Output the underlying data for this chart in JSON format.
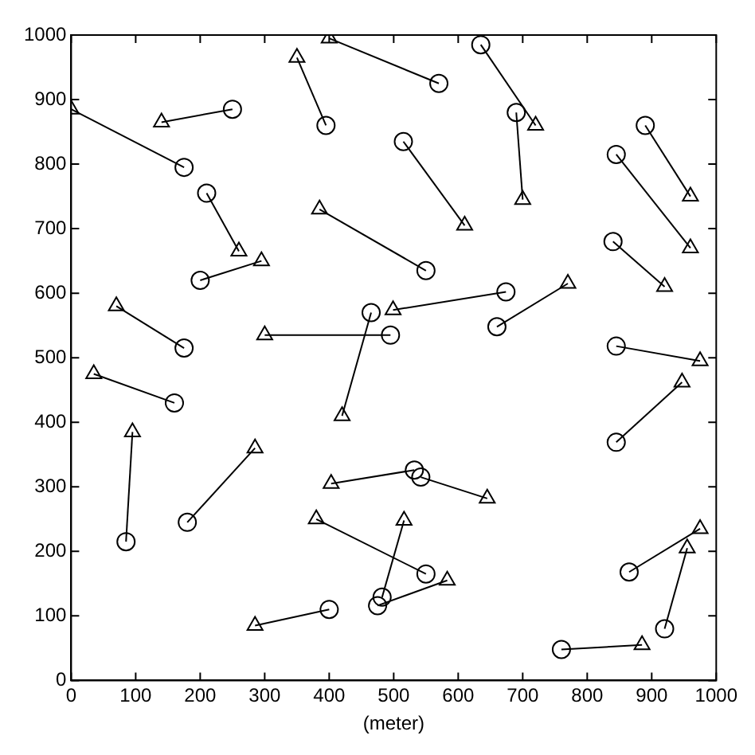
{
  "chart_data": {
    "type": "scatter",
    "xlabel": "(meter)",
    "xlim": [
      0,
      1000
    ],
    "ylim": [
      0,
      1000
    ],
    "xticks": [
      0,
      100,
      200,
      300,
      400,
      500,
      600,
      700,
      800,
      900,
      1000
    ],
    "yticks": [
      0,
      100,
      200,
      300,
      400,
      500,
      600,
      700,
      800,
      900,
      1000
    ],
    "grid": false,
    "legend": false,
    "series": [
      {
        "type": "line",
        "marker": "none",
        "color": "#000000",
        "x": [
          175,
          0
        ],
        "values": [
          795,
          885
        ]
      },
      {
        "type": "line",
        "marker": "none",
        "color": "#000000",
        "x": [
          250,
          140
        ],
        "values": [
          885,
          865
        ]
      },
      {
        "type": "line",
        "marker": "none",
        "color": "#000000",
        "x": [
          395,
          350
        ],
        "values": [
          860,
          965
        ]
      },
      {
        "type": "line",
        "marker": "none",
        "color": "#000000",
        "x": [
          570,
          400
        ],
        "values": [
          925,
          995
        ]
      },
      {
        "type": "line",
        "marker": "none",
        "color": "#000000",
        "x": [
          635,
          720
        ],
        "values": [
          985,
          860
        ]
      },
      {
        "type": "line",
        "marker": "none",
        "color": "#000000",
        "x": [
          690,
          700
        ],
        "values": [
          880,
          745
        ]
      },
      {
        "type": "line",
        "marker": "none",
        "color": "#000000",
        "x": [
          515,
          610
        ],
        "values": [
          835,
          705
        ]
      },
      {
        "type": "line",
        "marker": "none",
        "color": "#000000",
        "x": [
          550,
          385
        ],
        "values": [
          635,
          730
        ]
      },
      {
        "type": "line",
        "marker": "none",
        "color": "#000000",
        "x": [
          210,
          260
        ],
        "values": [
          755,
          665
        ]
      },
      {
        "type": "line",
        "marker": "none",
        "color": "#000000",
        "x": [
          200,
          295
        ],
        "values": [
          620,
          650
        ]
      },
      {
        "type": "line",
        "marker": "none",
        "color": "#000000",
        "x": [
          890,
          960
        ],
        "values": [
          860,
          750
        ]
      },
      {
        "type": "line",
        "marker": "none",
        "color": "#000000",
        "x": [
          845,
          960
        ],
        "values": [
          815,
          670
        ]
      },
      {
        "type": "line",
        "marker": "none",
        "color": "#000000",
        "x": [
          840,
          920
        ],
        "values": [
          680,
          610
        ]
      },
      {
        "type": "line",
        "marker": "none",
        "color": "#000000",
        "x": [
          674,
          499
        ],
        "values": [
          602,
          574
        ]
      },
      {
        "type": "line",
        "marker": "none",
        "color": "#000000",
        "x": [
          495,
          300
        ],
        "values": [
          535,
          535
        ]
      },
      {
        "type": "line",
        "marker": "none",
        "color": "#000000",
        "x": [
          465,
          420
        ],
        "values": [
          570,
          410
        ]
      },
      {
        "type": "line",
        "marker": "none",
        "color": "#000000",
        "x": [
          175,
          70
        ],
        "values": [
          515,
          580
        ]
      },
      {
        "type": "line",
        "marker": "none",
        "color": "#000000",
        "x": [
          660,
          770
        ],
        "values": [
          548,
          615
        ]
      },
      {
        "type": "line",
        "marker": "none",
        "color": "#000000",
        "x": [
          845,
          975
        ],
        "values": [
          518,
          495
        ]
      },
      {
        "type": "line",
        "marker": "none",
        "color": "#000000",
        "x": [
          845,
          947
        ],
        "values": [
          369,
          462
        ]
      },
      {
        "type": "line",
        "marker": "none",
        "color": "#000000",
        "x": [
          160,
          35
        ],
        "values": [
          430,
          475
        ]
      },
      {
        "type": "line",
        "marker": "none",
        "color": "#000000",
        "x": [
          85,
          95
        ],
        "values": [
          215,
          385
        ]
      },
      {
        "type": "line",
        "marker": "none",
        "color": "#000000",
        "x": [
          180,
          285
        ],
        "values": [
          245,
          360
        ]
      },
      {
        "type": "line",
        "marker": "none",
        "color": "#000000",
        "x": [
          532,
          403
        ],
        "values": [
          326,
          305
        ]
      },
      {
        "type": "line",
        "marker": "none",
        "color": "#000000",
        "x": [
          542,
          645
        ],
        "values": [
          315,
          282
        ]
      },
      {
        "type": "line",
        "marker": "none",
        "color": "#000000",
        "x": [
          550,
          380
        ],
        "values": [
          165,
          250
        ]
      },
      {
        "type": "line",
        "marker": "none",
        "color": "#000000",
        "x": [
          482,
          516
        ],
        "values": [
          129,
          248
        ]
      },
      {
        "type": "line",
        "marker": "none",
        "color": "#000000",
        "x": [
          475,
          583
        ],
        "values": [
          116,
          155
        ]
      },
      {
        "type": "line",
        "marker": "none",
        "color": "#000000",
        "x": [
          400,
          285
        ],
        "values": [
          110,
          85
        ]
      },
      {
        "type": "line",
        "marker": "none",
        "color": "#000000",
        "x": [
          760,
          885
        ],
        "values": [
          48,
          55
        ]
      },
      {
        "type": "line",
        "marker": "none",
        "color": "#000000",
        "x": [
          865,
          975
        ],
        "values": [
          168,
          235
        ]
      },
      {
        "type": "line",
        "marker": "none",
        "color": "#000000",
        "x": [
          920,
          955
        ],
        "values": [
          80,
          205
        ]
      },
      {
        "type": "scatter",
        "marker": "circle",
        "color": "#000000",
        "x": [
          175,
          250,
          395,
          570,
          635,
          690,
          515,
          550,
          210,
          200,
          890,
          845,
          840,
          674,
          495,
          465,
          175,
          660,
          845,
          845,
          160,
          85,
          180,
          532,
          542,
          550,
          482,
          475,
          400,
          760,
          865,
          920
        ],
        "values": [
          795,
          885,
          860,
          925,
          985,
          880,
          835,
          635,
          755,
          620,
          860,
          815,
          680,
          602,
          535,
          570,
          515,
          548,
          518,
          369,
          430,
          215,
          245,
          326,
          315,
          165,
          129,
          116,
          110,
          48,
          168,
          80
        ]
      },
      {
        "type": "scatter",
        "marker": "triangle",
        "color": "#000000",
        "x": [
          0,
          140,
          350,
          400,
          720,
          700,
          610,
          385,
          260,
          295,
          960,
          960,
          920,
          499,
          300,
          420,
          70,
          770,
          975,
          947,
          35,
          95,
          285,
          403,
          645,
          380,
          516,
          583,
          285,
          885,
          975,
          955
        ],
        "values": [
          885,
          865,
          965,
          995,
          860,
          745,
          705,
          730,
          665,
          650,
          750,
          670,
          610,
          574,
          535,
          410,
          580,
          615,
          495,
          462,
          475,
          385,
          360,
          305,
          282,
          250,
          248,
          155,
          85,
          55,
          235,
          205
        ]
      }
    ]
  }
}
